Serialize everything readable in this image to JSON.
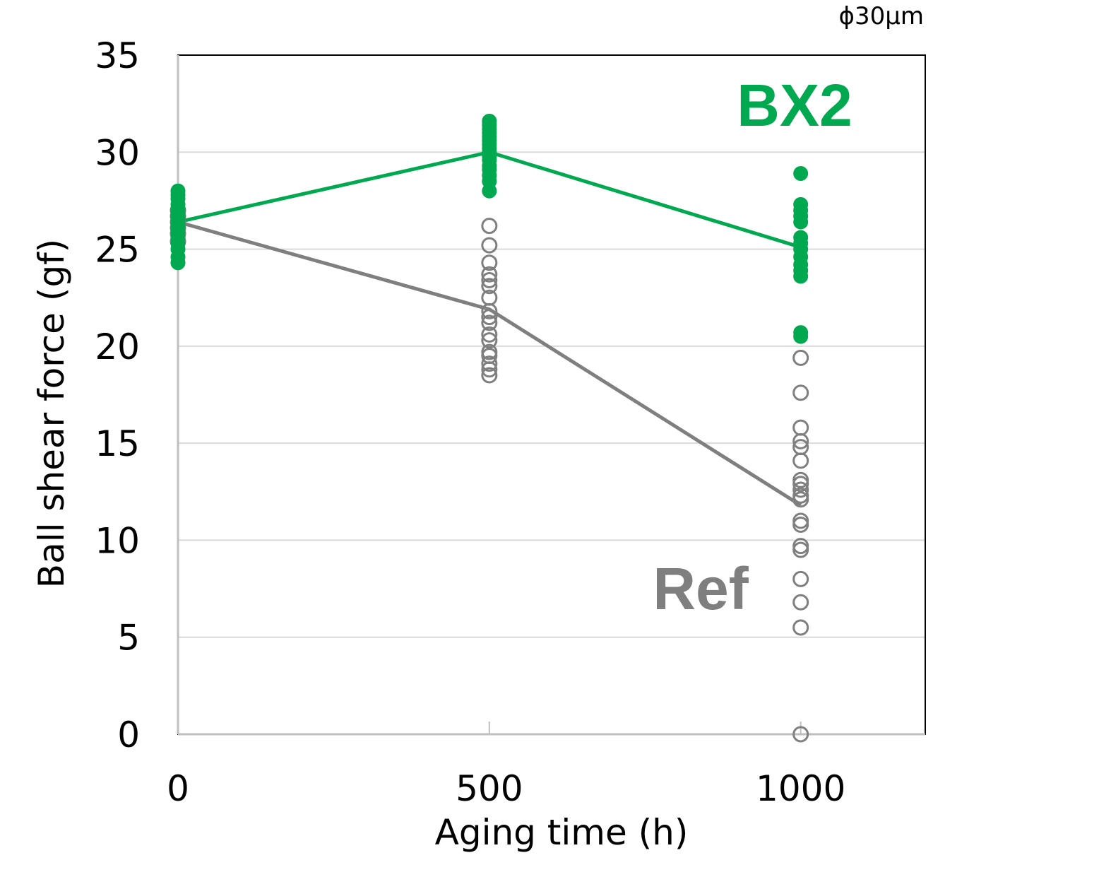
{
  "chart_data": {
    "type": "scatter",
    "note": "ϕ30μm",
    "xlabel": "Aging time (h)",
    "ylabel": "Ball shear force (gf)",
    "xlim": [
      0,
      1200
    ],
    "ylim": [
      0,
      35
    ],
    "x_ticks": [
      "0",
      "500",
      "1000"
    ],
    "y_ticks": [
      "0",
      "5",
      "10",
      "15",
      "20",
      "25",
      "30",
      "35"
    ],
    "grid": "horizontal",
    "series": [
      {
        "name": "BX2",
        "color": "#00A84F",
        "marker": "filled-circle",
        "mean_line": [
          [
            0,
            26.4
          ],
          [
            500,
            30.0
          ],
          [
            1000,
            25.1
          ]
        ],
        "points": [
          {
            "x": 0,
            "values": [
              24.3,
              24.6,
              25.0,
              25.3,
              25.6,
              25.9,
              26.1,
              26.3,
              26.5,
              26.7,
              26.9,
              27.1,
              27.3,
              27.6,
              27.8,
              28.0
            ]
          },
          {
            "x": 500,
            "values": [
              28.0,
              28.5,
              28.8,
              29.1,
              29.3,
              29.6,
              29.8,
              30.0,
              30.2,
              30.4,
              30.6,
              30.8,
              31.0,
              31.2,
              31.4,
              31.6
            ]
          },
          {
            "x": 1000,
            "values": [
              20.5,
              20.7,
              23.6,
              23.9,
              24.2,
              24.6,
              25.0,
              25.3,
              25.6,
              26.4,
              26.7,
              27.0,
              27.3,
              28.9
            ]
          }
        ]
      },
      {
        "name": "Ref",
        "color": "#7F7F7F",
        "marker": "open-circle",
        "mean_line": [
          [
            0,
            26.4
          ],
          [
            500,
            21.9
          ],
          [
            1000,
            11.8
          ]
        ],
        "points": [
          {
            "x": 0,
            "values": [
              25.4,
              25.8,
              26.1,
              26.4,
              26.7,
              27.0
            ]
          },
          {
            "x": 500,
            "values": [
              18.5,
              18.8,
              19.1,
              19.5,
              19.7,
              20.3,
              20.6,
              21.2,
              21.5,
              21.8,
              22.5,
              23.1,
              23.4,
              23.7,
              24.3,
              25.2,
              26.2
            ]
          },
          {
            "x": 1000,
            "values": [
              0.0,
              5.5,
              6.8,
              8.0,
              9.5,
              9.7,
              10.8,
              11.0,
              12.1,
              12.3,
              12.6,
              12.9,
              13.1,
              14.1,
              14.8,
              15.1,
              15.8,
              17.6,
              19.4
            ]
          }
        ]
      }
    ]
  }
}
